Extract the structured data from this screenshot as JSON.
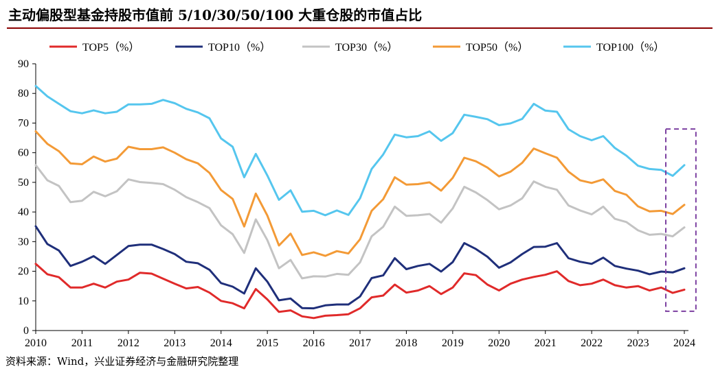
{
  "title": "主动偏股型基金持股市值前 5/10/30/50/100 大重仓股的市值占比",
  "source": "资料来源：Wind，兴业证券经济与金融研究院整理",
  "chart_data": {
    "type": "line",
    "title": "主动偏股型基金持股市值前 5/10/30/50/100 大重仓股的市值占比",
    "xlabel": "",
    "ylabel": "",
    "xlim": [
      2010,
      2024
    ],
    "ylim": [
      0,
      90
    ],
    "yticks": [
      0,
      10,
      20,
      30,
      40,
      50,
      60,
      70,
      80,
      90
    ],
    "xticks": [
      "2010",
      "2011",
      "2012",
      "2013",
      "2014",
      "2015",
      "2016",
      "2017",
      "2018",
      "2019",
      "2020",
      "2021",
      "2022",
      "2023",
      "2024"
    ],
    "grid": false,
    "legend_position": "top",
    "x": [
      2010,
      2010.25,
      2010.5,
      2010.75,
      2011,
      2011.25,
      2011.5,
      2011.75,
      2012,
      2012.25,
      2012.5,
      2012.75,
      2013,
      2013.25,
      2013.5,
      2013.75,
      2014,
      2014.25,
      2014.5,
      2014.75,
      2015,
      2015.25,
      2015.5,
      2015.75,
      2016,
      2016.25,
      2016.5,
      2016.75,
      2017,
      2017.25,
      2017.5,
      2017.75,
      2018,
      2018.25,
      2018.5,
      2018.75,
      2019,
      2019.25,
      2019.5,
      2019.75,
      2020,
      2020.25,
      2020.5,
      2020.75,
      2021,
      2021.25,
      2021.5,
      2021.75,
      2022,
      2022.25,
      2022.5,
      2022.75,
      2023,
      2023.25,
      2023.5,
      2023.75,
      2024
    ],
    "series": [
      {
        "name": "TOP5（%）",
        "color": "#e02a2a",
        "values": [
          22.5,
          19,
          18,
          14.5,
          14.5,
          15.8,
          14.5,
          16.5,
          17.2,
          19.5,
          19.2,
          17.5,
          15.8,
          14.2,
          14.7,
          12.8,
          10,
          9.2,
          7.5,
          14,
          10.5,
          6.3,
          6.8,
          4.8,
          4.2,
          5,
          5.2,
          5.5,
          7.5,
          11.2,
          11.8,
          15.5,
          12.8,
          13.5,
          15,
          12.3,
          14.5,
          19.3,
          18.7,
          15.5,
          13.5,
          15.8,
          17.2,
          18.1,
          18.8,
          20,
          16.7,
          15.3,
          15.8,
          17.2,
          15.3,
          14.5,
          15,
          13.5,
          14.5,
          12.7,
          13.8
        ]
      },
      {
        "name": "TOP10（%）",
        "color": "#1f2f7a",
        "values": [
          35.2,
          29.2,
          27,
          21.8,
          23.2,
          25.1,
          22.5,
          25.5,
          28.5,
          29,
          29,
          27.5,
          25.8,
          23.2,
          22.7,
          20.5,
          16,
          14.8,
          12.5,
          21,
          16.5,
          10.2,
          10.8,
          7.6,
          7.5,
          8.5,
          8.8,
          8.8,
          11.5,
          17.7,
          18.6,
          24.4,
          20.7,
          21.8,
          22.5,
          19.9,
          23.1,
          29.5,
          27.5,
          24.9,
          21.2,
          23,
          25.8,
          28.2,
          28.3,
          29.5,
          24.4,
          23.2,
          22.5,
          24.6,
          21.8,
          20.9,
          20.2,
          19,
          19.9,
          19.6,
          21
        ]
      },
      {
        "name": "TOP30（%）",
        "color": "#c3c3c3",
        "values": [
          55.8,
          50.7,
          48.8,
          43.3,
          43.8,
          46.8,
          45.3,
          47,
          51,
          50.1,
          49.8,
          49.4,
          47.5,
          45,
          43.3,
          41.3,
          35.5,
          32.5,
          26.2,
          37.5,
          30.5,
          21,
          23.8,
          17.6,
          18.3,
          18.2,
          19.1,
          18.8,
          23,
          31.8,
          35,
          41.8,
          38.7,
          38.9,
          39.3,
          36.4,
          41.2,
          48.5,
          46.6,
          44,
          40.9,
          42.2,
          44.6,
          50.3,
          48.5,
          47.5,
          42.2,
          40.5,
          39.2,
          41.8,
          37.7,
          36.6,
          33.8,
          32.3,
          32.6,
          31.8,
          34.8
        ]
      },
      {
        "name": "TOP50（%）",
        "color": "#f39a36",
        "values": [
          67.2,
          63,
          60.5,
          56.4,
          56.1,
          58.7,
          57,
          58,
          62,
          61.2,
          61.2,
          61.8,
          60,
          57.8,
          56.4,
          53.2,
          47.4,
          44.4,
          35.1,
          46.2,
          38.8,
          28.7,
          32.7,
          25.5,
          26.4,
          25.2,
          26.8,
          26,
          30.8,
          40.4,
          44.3,
          51.7,
          49.2,
          49.4,
          50,
          47.2,
          51.5,
          58.3,
          57.1,
          55,
          52,
          53.6,
          56.6,
          61.4,
          59.8,
          58.3,
          53.6,
          50.7,
          49.8,
          51,
          47.1,
          45.8,
          41.9,
          40.2,
          40.4,
          39.3,
          42.4
        ]
      },
      {
        "name": "TOP100（%）",
        "color": "#55c6ee",
        "values": [
          82.5,
          79,
          76.5,
          74,
          73.3,
          74.3,
          73.3,
          73.8,
          76.3,
          76.3,
          76.5,
          77.8,
          76.7,
          74.8,
          73.6,
          71.6,
          64.8,
          62,
          51.7,
          59.6,
          52.3,
          44.1,
          47.3,
          40.1,
          40.4,
          38.9,
          40.5,
          39,
          44.6,
          54.5,
          59.4,
          66.1,
          65.2,
          65.6,
          67.2,
          64,
          66.6,
          72.8,
          72.1,
          71.3,
          69.3,
          69.9,
          71.4,
          76.5,
          74.2,
          73.8,
          67.9,
          65.6,
          64.2,
          65.6,
          61.6,
          59,
          55.6,
          54.5,
          54.2,
          52.2,
          55.8
        ]
      }
    ],
    "highlight_box": {
      "x_range": [
        2023.6,
        2024.25
      ],
      "y_range": [
        6.5,
        68
      ],
      "color": "#7b3fa0",
      "style": "dashed"
    }
  }
}
